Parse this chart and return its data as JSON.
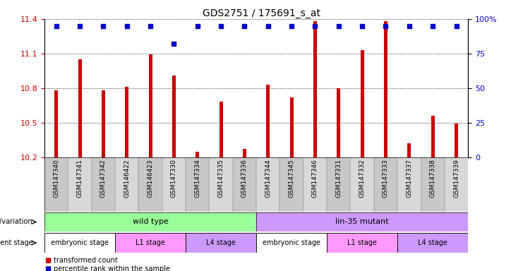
{
  "title": "GDS2751 / 175691_s_at",
  "samples": [
    "GSM147340",
    "GSM147341",
    "GSM147342",
    "GSM146422",
    "GSM146423",
    "GSM147330",
    "GSM147334",
    "GSM147335",
    "GSM147336",
    "GSM147344",
    "GSM147345",
    "GSM147346",
    "GSM147331",
    "GSM147332",
    "GSM147333",
    "GSM147337",
    "GSM147338",
    "GSM147339"
  ],
  "transformed_count": [
    10.78,
    11.05,
    10.78,
    10.81,
    11.09,
    10.91,
    10.25,
    10.68,
    10.27,
    10.83,
    10.72,
    11.38,
    10.8,
    11.13,
    11.38,
    10.32,
    10.56,
    10.49
  ],
  "percentile_rank": [
    95,
    95,
    95,
    95,
    95,
    82,
    95,
    95,
    95,
    95,
    95,
    95,
    95,
    95,
    95,
    95,
    95,
    95
  ],
  "ylim_left": [
    10.2,
    11.4
  ],
  "ylim_right": [
    0,
    100
  ],
  "yticks_left": [
    10.2,
    10.5,
    10.8,
    11.1,
    11.4
  ],
  "yticks_right": [
    0,
    25,
    50,
    75,
    100
  ],
  "bar_color": "#cc0000",
  "dot_color": "#0000cc",
  "genotype_groups": [
    {
      "label": "wild type",
      "start": 0,
      "end": 9,
      "color": "#99ff99"
    },
    {
      "label": "lin-35 mutant",
      "start": 9,
      "end": 18,
      "color": "#cc99ff"
    }
  ],
  "dev_stage_groups": [
    {
      "label": "embryonic stage",
      "start": 0,
      "end": 3,
      "color": "#ffffff"
    },
    {
      "label": "L1 stage",
      "start": 3,
      "end": 6,
      "color": "#ff99ff"
    },
    {
      "label": "L4 stage",
      "start": 6,
      "end": 9,
      "color": "#cc99ff"
    },
    {
      "label": "embryonic stage",
      "start": 9,
      "end": 12,
      "color": "#ffffff"
    },
    {
      "label": "L1 stage",
      "start": 12,
      "end": 15,
      "color": "#ff99ff"
    },
    {
      "label": "L4 stage",
      "start": 15,
      "end": 18,
      "color": "#cc99ff"
    }
  ]
}
